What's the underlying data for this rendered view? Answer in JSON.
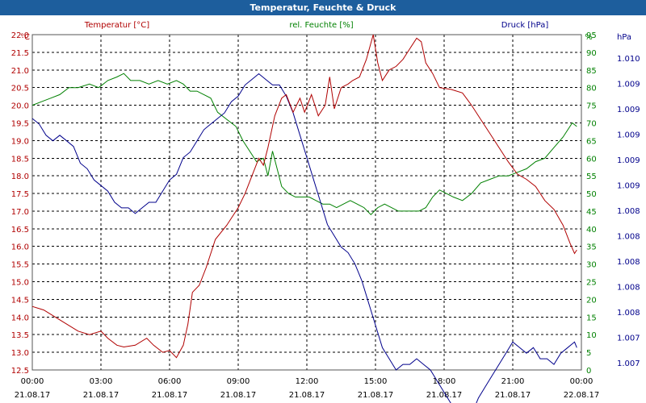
{
  "title": "Temperatur, Feuchte & Druck",
  "chart_data": {
    "type": "line",
    "title": "Temperatur, Feuchte & Druck",
    "colors": {
      "temperature": "#b00000",
      "humidity": "#008000",
      "pressure": "#00008b",
      "grid": "#000000",
      "title_bar": "#1d5e9d"
    },
    "series_labels": {
      "temperature": "Temperatur [°C]",
      "humidity": "rel. Feuchte [%]",
      "pressure": "Druck [hPa]"
    },
    "axes": {
      "temperature": {
        "unit": "°C",
        "range": [
          12.5,
          22.0
        ],
        "ticks": [
          "12.5",
          "13.0",
          "13.5",
          "14.0",
          "14.5",
          "15.0",
          "15.5",
          "16.0",
          "16.5",
          "17.0",
          "17.5",
          "18.0",
          "18.5",
          "19.0",
          "19.5",
          "20.0",
          "20.5",
          "21.0",
          "21.5",
          "22.0"
        ]
      },
      "humidity": {
        "unit": "%",
        "range": [
          0,
          95
        ],
        "ticks": [
          "0",
          "5",
          "10",
          "15",
          "20",
          "25",
          "30",
          "35",
          "40",
          "45",
          "50",
          "55",
          "60",
          "65",
          "70",
          "75",
          "80",
          "85",
          "90",
          "95"
        ]
      },
      "pressure": {
        "unit": "hPa",
        "range": [
          1007.0,
          1010.0
        ],
        "ticks": [
          "1.007",
          "1.007",
          "1.008",
          "1.008",
          "1.008",
          "1.008",
          "1.008",
          "1.009",
          "1.009",
          "1.009",
          "1.009",
          "1.009",
          "1.010"
        ]
      }
    },
    "x_ticks": [
      {
        "hours": 0,
        "time": "00:00",
        "date": "21.08.17"
      },
      {
        "hours": 3,
        "time": "03:00",
        "date": "21.08.17"
      },
      {
        "hours": 6,
        "time": "06:00",
        "date": "21.08.17"
      },
      {
        "hours": 9,
        "time": "09:00",
        "date": "21.08.17"
      },
      {
        "hours": 12,
        "time": "12:00",
        "date": "21.08.17"
      },
      {
        "hours": 15,
        "time": "15:00",
        "date": "21.08.17"
      },
      {
        "hours": 18,
        "time": "18:00",
        "date": "21.08.17"
      },
      {
        "hours": 21,
        "time": "21:00",
        "date": "21.08.17"
      },
      {
        "hours": 24,
        "time": "00:00",
        "date": "22.08.17"
      }
    ],
    "x_range": [
      0,
      24
    ],
    "series": {
      "temperature": [
        [
          0,
          14.3
        ],
        [
          0.5,
          14.2
        ],
        [
          1,
          14.0
        ],
        [
          1.5,
          13.8
        ],
        [
          2,
          13.6
        ],
        [
          2.5,
          13.5
        ],
        [
          3,
          13.6
        ],
        [
          3.3,
          13.4
        ],
        [
          3.7,
          13.2
        ],
        [
          4,
          13.15
        ],
        [
          4.5,
          13.2
        ],
        [
          5,
          13.4
        ],
        [
          5.3,
          13.2
        ],
        [
          5.7,
          13.0
        ],
        [
          6,
          13.05
        ],
        [
          6.3,
          12.85
        ],
        [
          6.6,
          13.2
        ],
        [
          6.8,
          13.8
        ],
        [
          7,
          14.7
        ],
        [
          7.3,
          14.9
        ],
        [
          7.6,
          15.4
        ],
        [
          8,
          16.2
        ],
        [
          8.5,
          16.6
        ],
        [
          9,
          17.1
        ],
        [
          9.3,
          17.5
        ],
        [
          9.6,
          18.0
        ],
        [
          9.9,
          18.5
        ],
        [
          10.1,
          18.3
        ],
        [
          10.3,
          18.8
        ],
        [
          10.6,
          19.7
        ],
        [
          10.9,
          20.2
        ],
        [
          11.1,
          20.3
        ],
        [
          11.4,
          19.8
        ],
        [
          11.7,
          20.2
        ],
        [
          11.9,
          19.8
        ],
        [
          12.2,
          20.3
        ],
        [
          12.5,
          19.7
        ],
        [
          12.8,
          20.0
        ],
        [
          13.0,
          20.8
        ],
        [
          13.2,
          19.9
        ],
        [
          13.5,
          20.5
        ],
        [
          13.8,
          20.6
        ],
        [
          14.0,
          20.7
        ],
        [
          14.3,
          20.8
        ],
        [
          14.6,
          21.3
        ],
        [
          14.9,
          22.0
        ],
        [
          15.1,
          21.2
        ],
        [
          15.3,
          20.7
        ],
        [
          15.6,
          21.0
        ],
        [
          15.9,
          21.1
        ],
        [
          16.2,
          21.3
        ],
        [
          16.5,
          21.6
        ],
        [
          16.8,
          21.9
        ],
        [
          17.0,
          21.8
        ],
        [
          17.2,
          21.2
        ],
        [
          17.5,
          20.9
        ],
        [
          17.8,
          20.5
        ],
        [
          18.3,
          20.45
        ],
        [
          18.8,
          20.35
        ],
        [
          19.2,
          20.0
        ],
        [
          19.6,
          19.6
        ],
        [
          20.0,
          19.2
        ],
        [
          20.4,
          18.8
        ],
        [
          20.8,
          18.4
        ],
        [
          21.2,
          18.05
        ],
        [
          21.6,
          17.9
        ],
        [
          22.0,
          17.7
        ],
        [
          22.4,
          17.3
        ],
        [
          22.8,
          17.05
        ],
        [
          23.2,
          16.6
        ],
        [
          23.5,
          16.1
        ],
        [
          23.7,
          15.8
        ],
        [
          23.8,
          15.9
        ]
      ],
      "humidity": [
        [
          0,
          75
        ],
        [
          0.4,
          76
        ],
        [
          0.8,
          77
        ],
        [
          1.2,
          78
        ],
        [
          1.6,
          80
        ],
        [
          2,
          80
        ],
        [
          2.5,
          81
        ],
        [
          2.9,
          80
        ],
        [
          3.3,
          82
        ],
        [
          3.7,
          83
        ],
        [
          4.0,
          84
        ],
        [
          4.3,
          82
        ],
        [
          4.7,
          82
        ],
        [
          5.1,
          81
        ],
        [
          5.5,
          82
        ],
        [
          5.9,
          81
        ],
        [
          6.3,
          82
        ],
        [
          6.6,
          81
        ],
        [
          6.9,
          79
        ],
        [
          7.2,
          79
        ],
        [
          7.5,
          78
        ],
        [
          7.8,
          77
        ],
        [
          8.1,
          73
        ],
        [
          8.5,
          71
        ],
        [
          8.9,
          69
        ],
        [
          9.2,
          65
        ],
        [
          9.5,
          62
        ],
        [
          9.8,
          59
        ],
        [
          10.1,
          60
        ],
        [
          10.3,
          55
        ],
        [
          10.5,
          62
        ],
        [
          10.7,
          57
        ],
        [
          10.9,
          52
        ],
        [
          11.2,
          50
        ],
        [
          11.5,
          49
        ],
        [
          11.8,
          49
        ],
        [
          12.1,
          49
        ],
        [
          12.4,
          48
        ],
        [
          12.7,
          47
        ],
        [
          13.0,
          47
        ],
        [
          13.3,
          46
        ],
        [
          13.6,
          47
        ],
        [
          13.9,
          48
        ],
        [
          14.2,
          47
        ],
        [
          14.5,
          46
        ],
        [
          14.8,
          44
        ],
        [
          15.1,
          46
        ],
        [
          15.4,
          47
        ],
        [
          15.7,
          46
        ],
        [
          16.0,
          45
        ],
        [
          16.3,
          45
        ],
        [
          16.6,
          45
        ],
        [
          16.9,
          45
        ],
        [
          17.2,
          46
        ],
        [
          17.5,
          49
        ],
        [
          17.8,
          51
        ],
        [
          18.1,
          50
        ],
        [
          18.4,
          49
        ],
        [
          18.8,
          48
        ],
        [
          19.2,
          50
        ],
        [
          19.6,
          53
        ],
        [
          20.0,
          54
        ],
        [
          20.4,
          55
        ],
        [
          20.8,
          55
        ],
        [
          21.2,
          56
        ],
        [
          21.6,
          57
        ],
        [
          22.0,
          59
        ],
        [
          22.4,
          60
        ],
        [
          22.8,
          63
        ],
        [
          23.2,
          66
        ],
        [
          23.6,
          70
        ],
        [
          23.8,
          69
        ]
      ],
      "pressure": [
        [
          0,
          1009.25
        ],
        [
          0.3,
          1009.2
        ],
        [
          0.6,
          1009.1
        ],
        [
          0.9,
          1009.05
        ],
        [
          1.2,
          1009.1
        ],
        [
          1.5,
          1009.05
        ],
        [
          1.8,
          1009.0
        ],
        [
          2.1,
          1008.85
        ],
        [
          2.4,
          1008.8
        ],
        [
          2.7,
          1008.7
        ],
        [
          3.0,
          1008.65
        ],
        [
          3.3,
          1008.6
        ],
        [
          3.6,
          1008.5
        ],
        [
          3.9,
          1008.45
        ],
        [
          4.2,
          1008.45
        ],
        [
          4.5,
          1008.4
        ],
        [
          4.8,
          1008.45
        ],
        [
          5.1,
          1008.5
        ],
        [
          5.4,
          1008.5
        ],
        [
          5.7,
          1008.6
        ],
        [
          6.0,
          1008.7
        ],
        [
          6.3,
          1008.75
        ],
        [
          6.6,
          1008.9
        ],
        [
          6.9,
          1008.95
        ],
        [
          7.2,
          1009.05
        ],
        [
          7.5,
          1009.15
        ],
        [
          7.8,
          1009.2
        ],
        [
          8.1,
          1009.25
        ],
        [
          8.4,
          1009.3
        ],
        [
          8.7,
          1009.4
        ],
        [
          9.0,
          1009.45
        ],
        [
          9.3,
          1009.55
        ],
        [
          9.6,
          1009.6
        ],
        [
          9.9,
          1009.65
        ],
        [
          10.2,
          1009.6
        ],
        [
          10.5,
          1009.55
        ],
        [
          10.8,
          1009.55
        ],
        [
          11.1,
          1009.45
        ],
        [
          11.4,
          1009.3
        ],
        [
          11.7,
          1009.1
        ],
        [
          12.0,
          1008.9
        ],
        [
          12.3,
          1008.7
        ],
        [
          12.6,
          1008.5
        ],
        [
          12.9,
          1008.3
        ],
        [
          13.2,
          1008.2
        ],
        [
          13.5,
          1008.1
        ],
        [
          13.8,
          1008.05
        ],
        [
          14.1,
          1007.95
        ],
        [
          14.4,
          1007.8
        ],
        [
          14.7,
          1007.6
        ],
        [
          15.0,
          1007.4
        ],
        [
          15.3,
          1007.2
        ],
        [
          15.6,
          1007.1
        ],
        [
          15.9,
          1007.0
        ],
        [
          16.2,
          1007.05
        ],
        [
          16.5,
          1007.05
        ],
        [
          16.8,
          1007.1
        ],
        [
          17.1,
          1007.05
        ],
        [
          17.4,
          1007.0
        ],
        [
          17.7,
          1006.9
        ],
        [
          18.0,
          1006.8
        ],
        [
          18.3,
          1006.7
        ],
        [
          18.6,
          1006.65
        ],
        [
          18.9,
          1006.6
        ],
        [
          19.2,
          1006.6
        ],
        [
          19.5,
          1006.75
        ],
        [
          19.8,
          1006.85
        ],
        [
          20.1,
          1006.95
        ],
        [
          20.4,
          1007.05
        ],
        [
          20.7,
          1007.15
        ],
        [
          21.0,
          1007.25
        ],
        [
          21.3,
          1007.2
        ],
        [
          21.6,
          1007.15
        ],
        [
          21.9,
          1007.2
        ],
        [
          22.2,
          1007.1
        ],
        [
          22.5,
          1007.1
        ],
        [
          22.8,
          1007.05
        ],
        [
          23.1,
          1007.15
        ],
        [
          23.4,
          1007.2
        ],
        [
          23.7,
          1007.25
        ],
        [
          23.8,
          1007.2
        ]
      ]
    }
  }
}
